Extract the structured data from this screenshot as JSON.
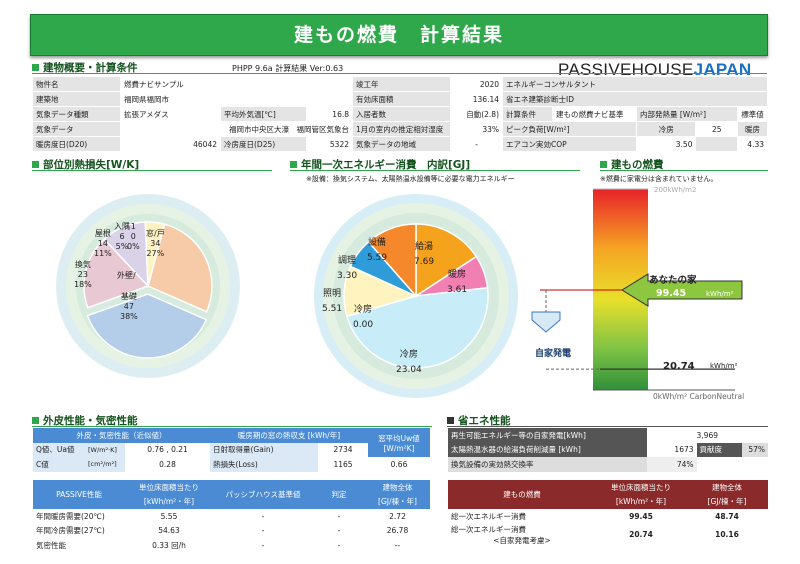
{
  "title": "建もの燃費　計算結果",
  "brand": {
    "part1": "PASSIVEHOUSE",
    "part2": "JAPAN"
  },
  "overview": {
    "heading": "建物概要・計算条件",
    "version": "PHPP 9.6a  計算結果 Ver:0.63",
    "rows": [
      [
        "物件名",
        "燃費ナビサンプル",
        "",
        "",
        "竣工年",
        "2020",
        "エネルギーコンサルタント",
        "",
        "",
        ""
      ],
      [
        "建築地",
        "福岡県福岡市",
        "",
        "",
        "有効床面積",
        "136.14",
        "省エネ建築診断士ID",
        "",
        "",
        ""
      ],
      [
        "気象データ種類",
        "拡張アメダス",
        "平均外気温[℃]",
        "16.8",
        "入居者数",
        "自動(2.8)",
        "計算条件",
        "建もの燃費ナビ基準",
        "内部発熱量 [W/m²]",
        "標準値"
      ],
      [
        "気象データ",
        "福岡市中央区大濠　福岡管区気象台",
        "",
        "",
        "1月の室内の推定相対湿度",
        "33%",
        "ピーク負荷[W/m²]",
        "冷房",
        "25",
        "暖房",
        "10"
      ],
      [
        "暖房度日(D20)",
        "46042",
        "冷房度日(D25)",
        "5322",
        "気象データの地域",
        "-",
        "エアコン実効COP",
        "",
        "3.50",
        "",
        "4.33"
      ]
    ]
  },
  "pie1": {
    "heading": "部位別熱損失[W/K]",
    "segments": [
      {
        "name": "窓/戸",
        "value": "34",
        "pct": "27%",
        "color": "#f8cba8"
      },
      {
        "name": "基礎",
        "value": "47",
        "pct": "38%",
        "color": "#b4cde8"
      },
      {
        "name": "換気",
        "value": "23",
        "pct": "18%",
        "color": "#e8c8d2"
      },
      {
        "name": "屋根",
        "value": "14",
        "pct": "11%",
        "color": "#d9d2e9"
      },
      {
        "name": "外壁",
        "value": "6",
        "pct": "5%",
        "color": "#fff2c2"
      },
      {
        "name": "入隅",
        "value": "0",
        "pct": "0%",
        "color": "#e2efd9"
      },
      {
        "name": "",
        "value": "0",
        "pct": "0%",
        "color": "#ffffff"
      }
    ],
    "labels": {
      "window": [
        "窓/戸",
        "34",
        "27%"
      ],
      "base": [
        "基礎",
        "47",
        "38%"
      ],
      "vent": [
        "換気",
        "23",
        "18%"
      ],
      "roof": [
        "屋根",
        "14",
        "11%"
      ],
      "wall": "外壁/",
      "corner": [
        "入隅",
        "6",
        "5%"
      ],
      "zero": [
        "1",
        "0",
        "0%"
      ]
    }
  },
  "pie2": {
    "heading": "年間一次エネルギー消費　内訳[GJ]",
    "note": "※設備：換気システム、太陽熱温水設備等に必要な電力エネルギー",
    "segments": [
      {
        "name": "給湯",
        "value": "7.69",
        "color": "#f5a21c"
      },
      {
        "name": "暖房",
        "value": "3.61",
        "color": "#f27fb2"
      },
      {
        "name": "冷房",
        "value": "23.04",
        "color": "#c8ecf8"
      },
      {
        "name": "照明",
        "value": "5.51",
        "color": "#fff3c0"
      },
      {
        "name": "調理",
        "value": "3.30",
        "color": "#2f9bd8"
      },
      {
        "name": "設備",
        "value": "5.59",
        "color": "#f4882a"
      }
    ],
    "labels": {
      "kyuto": [
        "給湯",
        "7.69"
      ],
      "danbo": [
        "暖房",
        "3.61"
      ],
      "reibo": [
        "冷房",
        "23.04"
      ],
      "shomei": [
        "照明",
        "5.51"
      ],
      "reibo0": [
        "冷房",
        "0.00"
      ],
      "chori": [
        "調理",
        "3.30"
      ],
      "setsubi": [
        "設備",
        "5.59"
      ]
    }
  },
  "gauge": {
    "heading": "建もの燃費",
    "note": "※燃費に家電分は含まれていません。",
    "top": "200kWh/m2",
    "bottom": "0kWh/m² CarbonNeutral",
    "your_house": "あなたの家",
    "your_value": "99.45",
    "your_unit": "kWh/m²",
    "solar_label": "自家発電",
    "net_value": "20.74",
    "net_unit": "kWh/m²",
    "your_value_num": 99.45,
    "net_value_num": 20.74,
    "max": 200
  },
  "envelope": {
    "heading": "外皮性能・気密性能",
    "h1": "外皮・気密性能（近似値）",
    "h2": "暖房期の窓の熱収支 [kWh/年]",
    "h3": "窓平均Uw値",
    "h3b": "[W/m²K]",
    "rows": [
      [
        "Q値、Ua値",
        "[W/m²·K]",
        "0.76 , 0.21",
        "日射取得量(Gain)",
        "2734",
        ""
      ],
      [
        "C値",
        "[cm²/m²]",
        "0.28",
        "熱損失(Loss)",
        "1165",
        "0.66"
      ]
    ],
    "ph_headers": [
      "PASSIVE性能",
      "単位床面積当たり",
      "パッシブハウス基準値",
      "判定",
      "建物全体"
    ],
    "ph_units": [
      "",
      "[kWh/m²・年]",
      "",
      "",
      "[GJ/棟・年]"
    ],
    "ph_rows": [
      [
        "年間暖房需要(20℃)",
        "5.55",
        "-",
        "-",
        "2.72"
      ],
      [
        "年間冷房需要(27℃)",
        "54.63",
        "-",
        "-",
        "26.78"
      ],
      [
        "気密性能",
        "0.33 回/h",
        "-",
        "-",
        "--"
      ]
    ]
  },
  "energy": {
    "heading": "省エネ性能",
    "r1": [
      "再生可能エネルギー等の自家発電[kWh]",
      "3,969"
    ],
    "r2": [
      "太陽熱温水器の給湯負荷削減量 [kWh]",
      "1673",
      "貢献度",
      "57%"
    ],
    "r3": [
      "換気設備の実効熱交換率",
      "74%"
    ],
    "headers": [
      "建もの燃費",
      "単位床面積当たり",
      "建物全体"
    ],
    "units": [
      "",
      "[kWh/m²・年]",
      "[GJ/棟・年]"
    ],
    "rows": [
      [
        "総一次エネルギー消費",
        "99.45",
        "48.74"
      ],
      [
        "総一次エネルギー消費",
        "20.74",
        "10.16"
      ]
    ],
    "row2_sub": "<自家発電考慮>"
  }
}
